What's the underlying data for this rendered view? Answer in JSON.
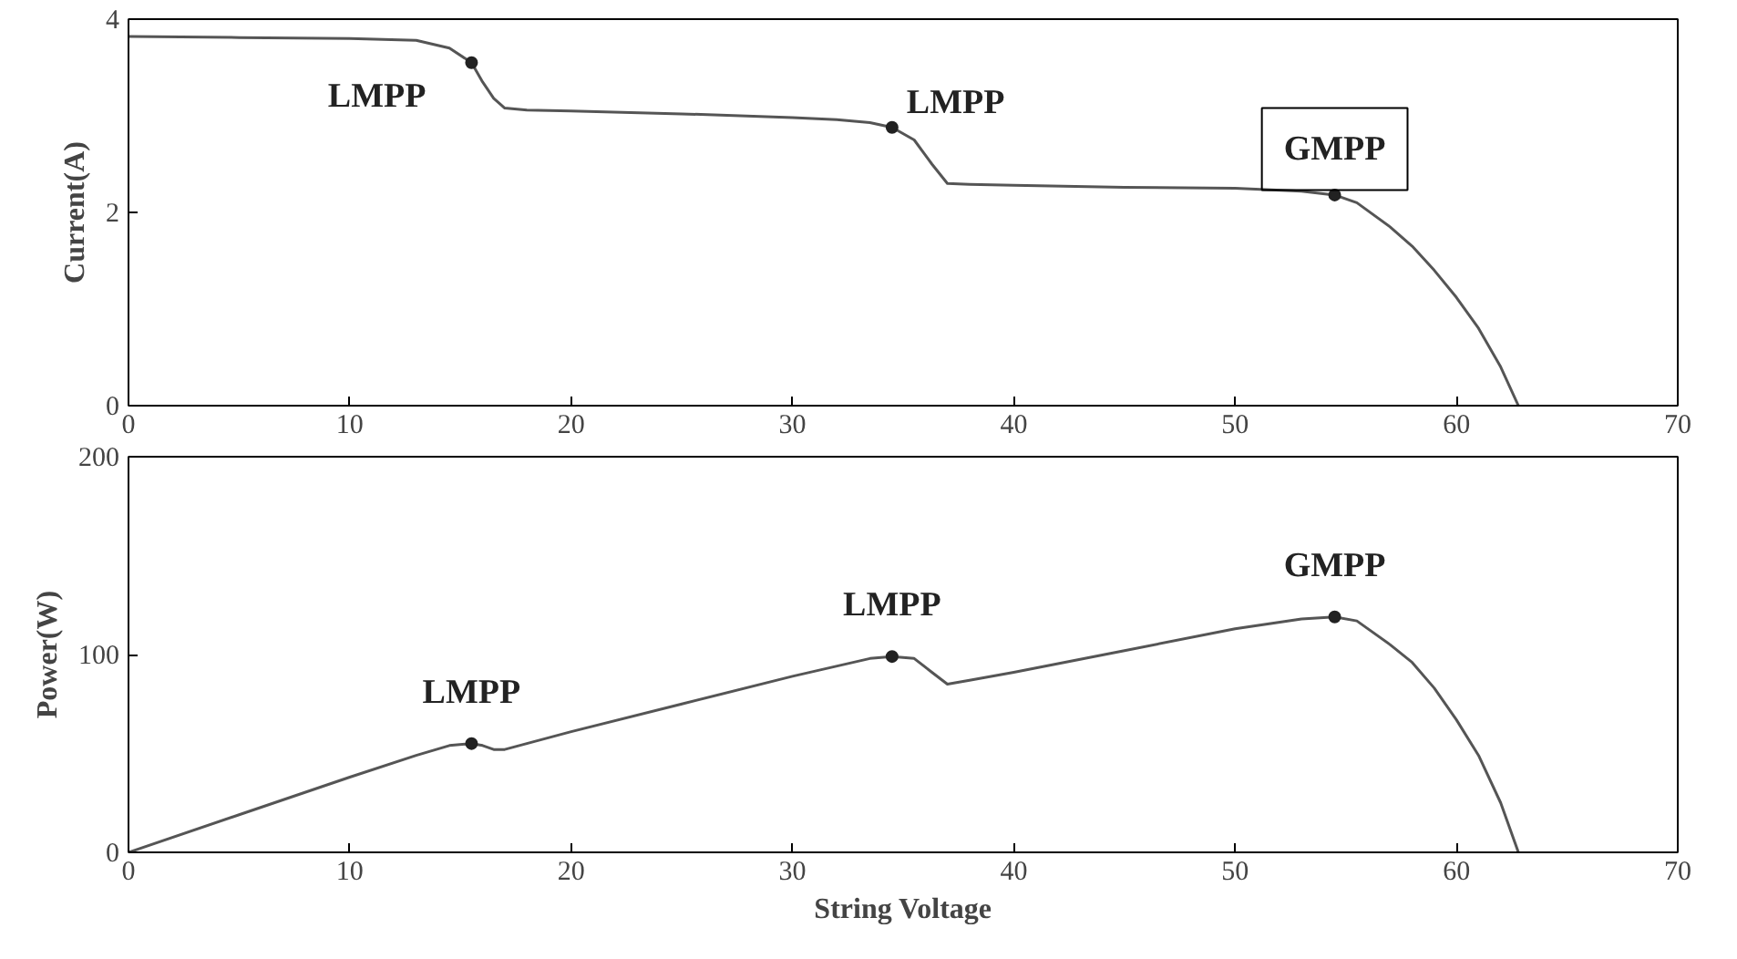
{
  "chart_data": [
    {
      "type": "line",
      "ylabel": "Current(A)",
      "xlim": [
        0,
        70
      ],
      "ylim": [
        0,
        4
      ],
      "xticks": [
        0,
        10,
        20,
        30,
        40,
        50,
        60,
        70
      ],
      "yticks": [
        0,
        2,
        4
      ],
      "grid": false,
      "series": [
        {
          "color": "#555555",
          "x": [
            0,
            5,
            10,
            13,
            14.5,
            15.5,
            16,
            16.5,
            17,
            18,
            20,
            25,
            30,
            32,
            33.5,
            34.5,
            35.5,
            36.3,
            37,
            38,
            40,
            45,
            50,
            53,
            54.5,
            55.5,
            57,
            58,
            59,
            60,
            61,
            62,
            62.8
          ],
          "values": [
            3.82,
            3.81,
            3.8,
            3.78,
            3.7,
            3.55,
            3.35,
            3.18,
            3.08,
            3.06,
            3.05,
            3.02,
            2.98,
            2.96,
            2.93,
            2.88,
            2.75,
            2.5,
            2.3,
            2.29,
            2.28,
            2.26,
            2.25,
            2.22,
            2.18,
            2.1,
            1.85,
            1.65,
            1.4,
            1.12,
            0.8,
            0.4,
            0
          ]
        },
        {
          "type": "scatter",
          "color": "#222222",
          "marker": "circle",
          "x": [
            15.5,
            34.5,
            54.5
          ],
          "values": [
            3.55,
            2.88,
            2.18
          ]
        }
      ],
      "annotations": [
        {
          "text": "LMPP",
          "x": 15.5,
          "y": 3.55
        },
        {
          "text": "LMPP",
          "x": 34.5,
          "y": 2.88
        },
        {
          "text": "GMPP",
          "x": 54.5,
          "y": 2.18
        }
      ]
    },
    {
      "type": "line",
      "xlabel": "String Voltage",
      "ylabel": "Power(W)",
      "xlim": [
        0,
        70
      ],
      "ylim": [
        0,
        200
      ],
      "xticks": [
        0,
        10,
        20,
        30,
        40,
        50,
        60,
        70
      ],
      "yticks": [
        0,
        100,
        200
      ],
      "grid": false,
      "series": [
        {
          "color": "#555555",
          "x": [
            0,
            5,
            10,
            13,
            14.5,
            15.5,
            16,
            16.5,
            17,
            18,
            20,
            25,
            30,
            33.5,
            34.5,
            35.5,
            36.3,
            37,
            38,
            40,
            45,
            50,
            53,
            54.5,
            55.5,
            57,
            58,
            59,
            60,
            61,
            62,
            62.8
          ],
          "values": [
            0,
            19,
            38,
            49,
            54,
            55,
            54,
            52,
            52,
            55,
            61,
            75,
            89,
            98,
            99,
            98,
            91,
            85,
            87,
            91,
            102,
            113,
            118,
            119,
            117,
            105,
            96,
            83,
            67,
            49,
            25,
            0
          ]
        },
        {
          "type": "scatter",
          "color": "#222222",
          "marker": "circle",
          "x": [
            15.5,
            34.5,
            54.5
          ],
          "values": [
            55,
            99,
            119
          ]
        }
      ],
      "annotations": [
        {
          "text": "LMPP",
          "x": 15.5,
          "y": 55
        },
        {
          "text": "LMPP",
          "x": 34.5,
          "y": 99
        },
        {
          "text": "GMPP",
          "x": 54.5,
          "y": 119
        }
      ]
    }
  ]
}
